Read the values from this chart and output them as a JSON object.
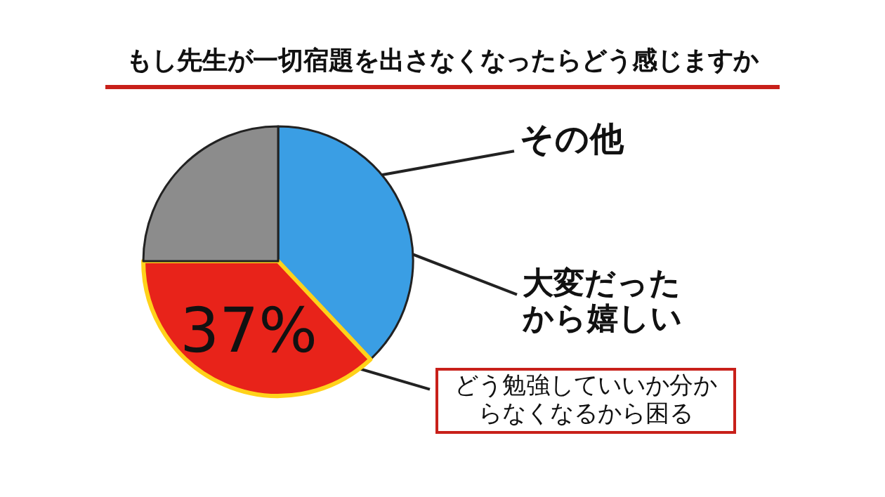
{
  "chart_data": {
    "type": "pie",
    "title": "もし先生が一切宿題を出さなくなったらどう感じますか",
    "categories": [
      "大変だったから嬉しい",
      "どう勉強していいか分からなくなるから困る",
      "その他"
    ],
    "values": [
      38,
      37,
      25
    ],
    "colors": [
      "#3a9ee4",
      "#e8231a",
      "#8c8c8c"
    ],
    "value_labels": [
      null,
      "37%",
      null
    ]
  }
}
